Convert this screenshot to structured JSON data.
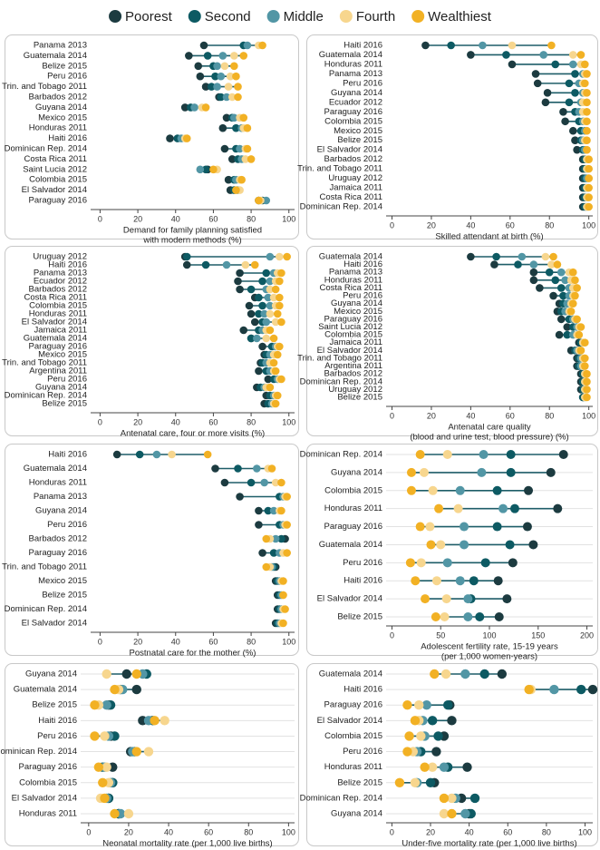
{
  "legend": [
    {
      "name": "Poorest",
      "color": "#1c3b40"
    },
    {
      "name": "Second",
      "color": "#0d5a63"
    },
    {
      "name": "Middle",
      "color": "#5296a5"
    },
    {
      "name": "Fourth",
      "color": "#f7d68e"
    },
    {
      "name": "Wealthiest",
      "color": "#f2b124"
    }
  ],
  "chart_data": [
    {
      "type": "dumbbell",
      "xlabel": [
        "Demand for family planning satisfied",
        "with modern methods (%)"
      ],
      "categories": [
        "Panama 2013",
        "Guatemala 2014",
        "Belize 2015",
        "Peru 2016",
        "Trin. and Tobago 2011",
        "Barbados 2012",
        "Guyana 2014",
        "Mexico 2015",
        "Honduras 2011",
        "Haiti 2016",
        "Dominican Rep. 2014",
        "Costa Rica 2011",
        "Saint Lucia 2012",
        "Colombia 2015",
        "El Salvador 2014",
        "Paraguay 2016"
      ],
      "series": [
        {
          "values": [
            55,
            47,
            52,
            53,
            56,
            63,
            45,
            67,
            65,
            37,
            66,
            70,
            57,
            68,
            69,
            84
          ]
        },
        {
          "values": [
            76,
            57,
            60,
            61,
            59,
            64,
            48,
            70,
            72,
            41,
            72,
            73,
            56,
            71,
            71,
            86
          ]
        },
        {
          "values": [
            78,
            65,
            62,
            64,
            62,
            67,
            50,
            71,
            75,
            43,
            74,
            75,
            53,
            72,
            73,
            88
          ]
        },
        {
          "values": [
            84,
            71,
            66,
            69,
            68,
            70,
            54,
            74,
            76,
            45,
            77,
            77,
            62,
            74,
            74,
            85
          ]
        },
        {
          "values": [
            86,
            76,
            71,
            72,
            73,
            73,
            56,
            76,
            78,
            46,
            78,
            80,
            60,
            75,
            72,
            84
          ]
        }
      ],
      "xlim": [
        -5,
        103
      ],
      "xticks": [
        0,
        20,
        40,
        60,
        80,
        100
      ],
      "grid": false
    },
    {
      "type": "dumbbell",
      "xlabel": [
        "Skilled attendant at birth (%)"
      ],
      "categories": [
        "Haiti 2016",
        "Guatemala 2014",
        "Honduras 2011",
        "Panama 2013",
        "Peru 2016",
        "Guyana 2014",
        "Ecuador 2012",
        "Paraguay 2016",
        "Colombia 2015",
        "Mexico 2015",
        "Belize 2015",
        "El Salvador 2014",
        "Barbados 2012",
        "Trin. and Tobago 2011",
        "Uruguay 2012",
        "Jamaica 2011",
        "Costa Rica 2011",
        "Dominican Rep. 2014"
      ],
      "series": [
        {
          "values": [
            17,
            40,
            61,
            73,
            74,
            79,
            78,
            87,
            88,
            92,
            93,
            94,
            97,
            97,
            97,
            97,
            97,
            97
          ]
        },
        {
          "values": [
            30,
            58,
            83,
            93,
            90,
            93,
            90,
            93,
            95,
            96,
            96,
            97,
            98,
            98,
            98,
            98,
            98,
            98
          ]
        },
        {
          "values": [
            46,
            77,
            92,
            97,
            95,
            97,
            96,
            95,
            97,
            98,
            97,
            98,
            99,
            99,
            99,
            99,
            99,
            99
          ]
        },
        {
          "values": [
            61,
            92,
            96,
            98,
            97,
            98,
            97,
            97,
            98,
            99,
            98,
            99,
            99,
            99,
            100,
            99,
            99,
            99
          ]
        },
        {
          "values": [
            81,
            96,
            98,
            99,
            98,
            99,
            99,
            99,
            99,
            99,
            99,
            99,
            100,
            100,
            100,
            100,
            100,
            100
          ]
        }
      ],
      "xlim": [
        -3,
        102
      ],
      "xticks": [
        0,
        20,
        40,
        60,
        80,
        100
      ],
      "grid": false
    },
    {
      "type": "dumbbell",
      "xlabel": [
        "Antenatal care, four or more visits (%)"
      ],
      "categories": [
        "Uruguay 2012",
        "Haiti 2016",
        "Panama 2013",
        "Ecuador 2012",
        "Barbados 2012",
        "Costa Rica 2011",
        "Colombia 2015",
        "Honduras 2011",
        "El Salvador 2014",
        "Jamaica 2011",
        "Guatemala 2014",
        "Paraguay 2016",
        "Mexico 2015",
        "Trin. and Tobago 2011",
        "Argentina 2011",
        "Peru 2016",
        "Guyana 2014",
        "Dominican Rep. 2014",
        "Belize 2015"
      ],
      "series": [
        {
          "values": [
            45,
            46,
            74,
            73,
            74,
            82,
            79,
            80,
            82,
            76,
            80,
            86,
            87,
            85,
            84,
            89,
            83,
            88,
            87
          ]
        },
        {
          "values": [
            46,
            56,
            88,
            86,
            80,
            84,
            86,
            84,
            86,
            84,
            80,
            91,
            88,
            86,
            88,
            92,
            85,
            90,
            89
          ]
        },
        {
          "values": [
            90,
            67,
            92,
            90,
            88,
            89,
            90,
            87,
            88,
            86,
            83,
            93,
            90,
            88,
            90,
            94,
            87,
            92,
            91
          ]
        },
        {
          "values": [
            95,
            77,
            94,
            93,
            90,
            92,
            93,
            90,
            93,
            88,
            88,
            94,
            92,
            90,
            92,
            95,
            88,
            93,
            92
          ]
        },
        {
          "values": [
            99,
            82,
            96,
            95,
            93,
            95,
            95,
            94,
            96,
            90,
            92,
            95,
            94,
            92,
            93,
            96,
            90,
            94,
            93
          ]
        }
      ],
      "xlim": [
        -5,
        103
      ],
      "xticks": [
        0,
        20,
        40,
        60,
        80,
        100
      ],
      "grid": false
    },
    {
      "type": "dumbbell",
      "xlabel": [
        "Antenatal care quality",
        "(blood and urine test, blood pressure) (%)"
      ],
      "categories": [
        "Guatemala 2014",
        "Haiti 2016",
        "Panama 2013",
        "Honduras 2011",
        "Costa Rica 2011",
        "Peru 2016",
        "Guyana 2014",
        "Mexico 2015",
        "Paraguay 2016",
        "Saint Lucia 2012",
        "Colombia 2015",
        "Jamaica 2011",
        "El Salvador 2014",
        "Trin. and Tobago 2011",
        "Argentina 2011",
        "Barbados 2012",
        "Dominican Rep. 2014",
        "Uruguay 2012",
        "Belize 2015"
      ],
      "series": [
        {
          "values": [
            40,
            52,
            72,
            72,
            75,
            82,
            85,
            84,
            86,
            89,
            85,
            95,
            91,
            94,
            94,
            96,
            96,
            96,
            97
          ]
        },
        {
          "values": [
            53,
            64,
            80,
            83,
            86,
            87,
            87,
            86,
            90,
            92,
            89,
            96,
            93,
            95,
            95,
            97,
            97,
            97,
            97
          ]
        },
        {
          "values": [
            66,
            72,
            86,
            88,
            90,
            90,
            89,
            88,
            92,
            94,
            92,
            97,
            94,
            96,
            96,
            98,
            98,
            98,
            98
          ]
        },
        {
          "values": [
            78,
            81,
            90,
            91,
            92,
            92,
            91,
            90,
            93,
            95,
            94,
            97,
            95,
            97,
            97,
            98,
            98,
            98,
            98
          ]
        },
        {
          "values": [
            82,
            84,
            92,
            93,
            94,
            93,
            92,
            91,
            94,
            96,
            95,
            98,
            96,
            98,
            98,
            99,
            99,
            99,
            99
          ]
        }
      ],
      "xlim": [
        -3,
        102
      ],
      "xticks": [
        0,
        20,
        40,
        60,
        80,
        100
      ],
      "grid": false
    },
    {
      "type": "dumbbell",
      "xlabel": [
        "Postnatal care for the mother (%)"
      ],
      "categories": [
        "Haiti 2016",
        "Guatemala 2014",
        "Honduras 2011",
        "Panama 2013",
        "Guyana 2014",
        "Peru 2016",
        "Barbados 2012",
        "Paraguay 2016",
        "Trin. and Tobago 2011",
        "Mexico 2015",
        "Belize 2015",
        "Dominican Rep. 2014",
        "El Salvador 2014"
      ],
      "series": [
        {
          "values": [
            9,
            61,
            66,
            74,
            84,
            84,
            98,
            86,
            93,
            93,
            94,
            94,
            93
          ]
        },
        {
          "values": [
            21,
            73,
            80,
            95,
            89,
            95,
            96,
            92,
            92,
            94,
            95,
            95,
            94
          ]
        },
        {
          "values": [
            30,
            83,
            87,
            97,
            92,
            97,
            93,
            95,
            91,
            95,
            96,
            96,
            95
          ]
        },
        {
          "values": [
            38,
            89,
            93,
            98,
            95,
            98,
            90,
            97,
            90,
            96,
            97,
            97,
            96
          ]
        },
        {
          "values": [
            57,
            91,
            96,
            99,
            96,
            99,
            88,
            99,
            88,
            97,
            97,
            98,
            97
          ]
        }
      ],
      "xlim": [
        -5,
        103
      ],
      "xticks": [
        0,
        20,
        40,
        60,
        80,
        100
      ],
      "grid": false
    },
    {
      "type": "dumbbell",
      "xlabel": [
        "Adolescent fertility rate, 15-19 years",
        "(per 1,000 women-years)"
      ],
      "categories": [
        "Dominican Rep. 2014",
        "Guyana 2014",
        "Colombia 2015",
        "Honduras 2011",
        "Paraguay 2016",
        "Guatemala 2014",
        "Peru 2016",
        "Haiti 2016",
        "El Salvador 2014",
        "Belize 2015"
      ],
      "series": [
        {
          "values": [
            176,
            163,
            140,
            170,
            139,
            145,
            124,
            109,
            118,
            110
          ]
        },
        {
          "values": [
            122,
            122,
            108,
            126,
            108,
            121,
            96,
            84,
            81,
            90
          ]
        },
        {
          "values": [
            94,
            92,
            70,
            114,
            74,
            74,
            57,
            70,
            78,
            78
          ]
        },
        {
          "values": [
            57,
            33,
            42,
            68,
            39,
            50,
            30,
            46,
            56,
            54
          ]
        },
        {
          "values": [
            29,
            20,
            20,
            48,
            29,
            40,
            19,
            24,
            34,
            45
          ]
        }
      ],
      "xlim": [
        -6,
        206
      ],
      "xticks": [
        0,
        50,
        100,
        150,
        200
      ],
      "grid": true
    },
    {
      "type": "dumbbell",
      "xlabel": [
        "Neonatal mortality rate  (per 1,000 live births)"
      ],
      "categories": [
        "Guyana 2014",
        "Guatemala 2014",
        "Belize 2015",
        "Haiti 2016",
        "Peru 2016",
        "Dominican Rep. 2014",
        "Paraguay 2016",
        "Colombia 2015",
        "El Salvador 2014",
        "Honduras 2011"
      ],
      "series": [
        {
          "values": [
            19,
            24,
            10,
            27,
            11,
            21,
            12,
            12,
            10,
            15
          ]
        },
        {
          "values": [
            29,
            16,
            11,
            32,
            13,
            23,
            7,
            12,
            10,
            15
          ]
        },
        {
          "values": [
            27,
            17,
            9,
            30,
            10,
            22,
            8,
            11,
            9,
            16
          ]
        },
        {
          "values": [
            9,
            15,
            5,
            38,
            8,
            30,
            9,
            10,
            6,
            20
          ]
        },
        {
          "values": [
            24,
            13,
            3,
            33,
            3,
            24,
            5,
            7,
            8,
            13
          ]
        }
      ],
      "xlim": [
        -4,
        103
      ],
      "xticks": [
        0,
        20,
        40,
        60,
        80,
        100
      ],
      "grid": true
    },
    {
      "type": "dumbbell",
      "xlabel": [
        "Under-five mortality rate  (per 1,000 live births)"
      ],
      "categories": [
        "Guatemala 2014",
        "Haiti 2016",
        "Paraguay 2016",
        "El Salvador 2014",
        "Colombia 2015",
        "Peru 2016",
        "Honduras 2011",
        "Belize 2015",
        "Dominican Rep. 2014",
        "Guyana 2014"
      ],
      "series": [
        {
          "values": [
            57,
            104,
            30,
            31,
            27,
            23,
            39,
            22,
            36,
            40
          ]
        },
        {
          "values": [
            48,
            98,
            29,
            21,
            24,
            15,
            29,
            20,
            43,
            41
          ]
        },
        {
          "values": [
            38,
            84,
            18,
            16,
            17,
            13,
            27,
            13,
            33,
            38
          ]
        },
        {
          "values": [
            28,
            72,
            14,
            14,
            15,
            11,
            21,
            12,
            31,
            27
          ]
        },
        {
          "values": [
            22,
            71,
            8,
            12,
            9,
            8,
            17,
            4,
            27,
            31
          ]
        }
      ],
      "xlim": [
        -3,
        104
      ],
      "xticks": [
        0,
        20,
        40,
        60,
        80,
        100
      ],
      "grid": true
    }
  ]
}
